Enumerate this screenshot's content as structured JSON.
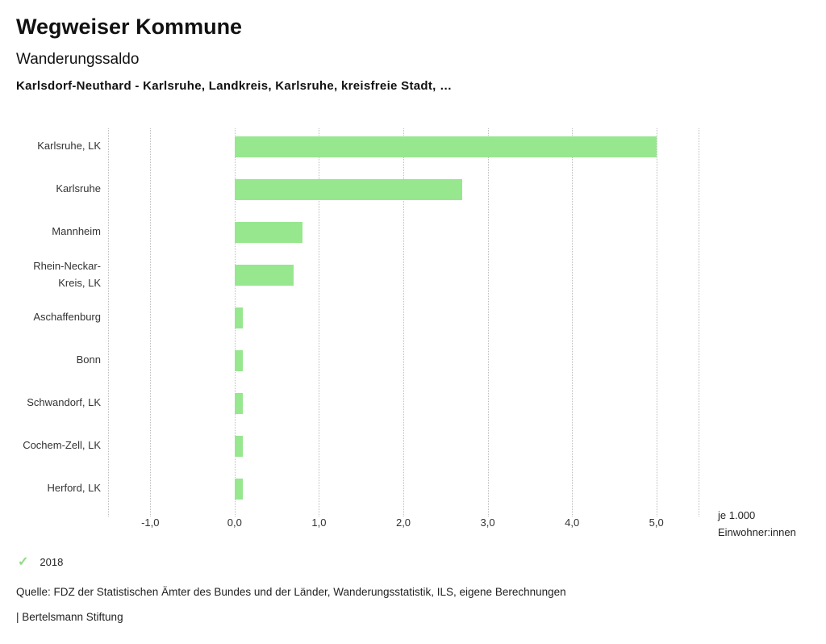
{
  "page": {
    "title": "Wegweiser Kommune",
    "subtitle": "Wanderungssaldo",
    "description": "Karlsdorf-Neuthard - Karlsruhe, Landkreis, Karlsruhe, kreisfreie Stadt, …",
    "source": "Quelle: FDZ der Statistischen Ämter des Bundes und der Länder, Wanderungsstatistik, ILS, eigene Berechnungen",
    "branding": "| Bertelsmann Stiftung"
  },
  "legend": {
    "check_icon": "✓",
    "check_color": "#8fdc82",
    "year": "2018"
  },
  "axis": {
    "unit_line1": "je 1.000",
    "unit_line2": "Einwohner:innen"
  },
  "chart_data": {
    "type": "bar",
    "orientation": "horizontal",
    "title": "Wanderungssaldo",
    "xlabel": "je 1.000 Einwohner:innen",
    "series_name": "2018",
    "categories": [
      "Karlsruhe, LK",
      "Karlsruhe",
      "Mannheim",
      "Rhein-Neckar-Kreis, LK",
      "Aschaffenburg",
      "Bonn",
      "Schwandorf, LK",
      "Cochem-Zell, LK",
      "Herford, LK"
    ],
    "values": [
      5.0,
      2.7,
      0.8,
      0.7,
      0.1,
      0.1,
      0.1,
      0.1,
      0.1
    ],
    "bar_color": "#97e78f",
    "xlim": [
      -1.5,
      5.5
    ],
    "x_ticks": [
      -1,
      0,
      1,
      2,
      3,
      4,
      5
    ],
    "tick_labels": [
      "-1,0",
      "0,0",
      "1,0",
      "2,0",
      "3,0",
      "4,0",
      "5,0"
    ],
    "grid": "dotted-vertical",
    "legend_position": "bottom-left"
  }
}
